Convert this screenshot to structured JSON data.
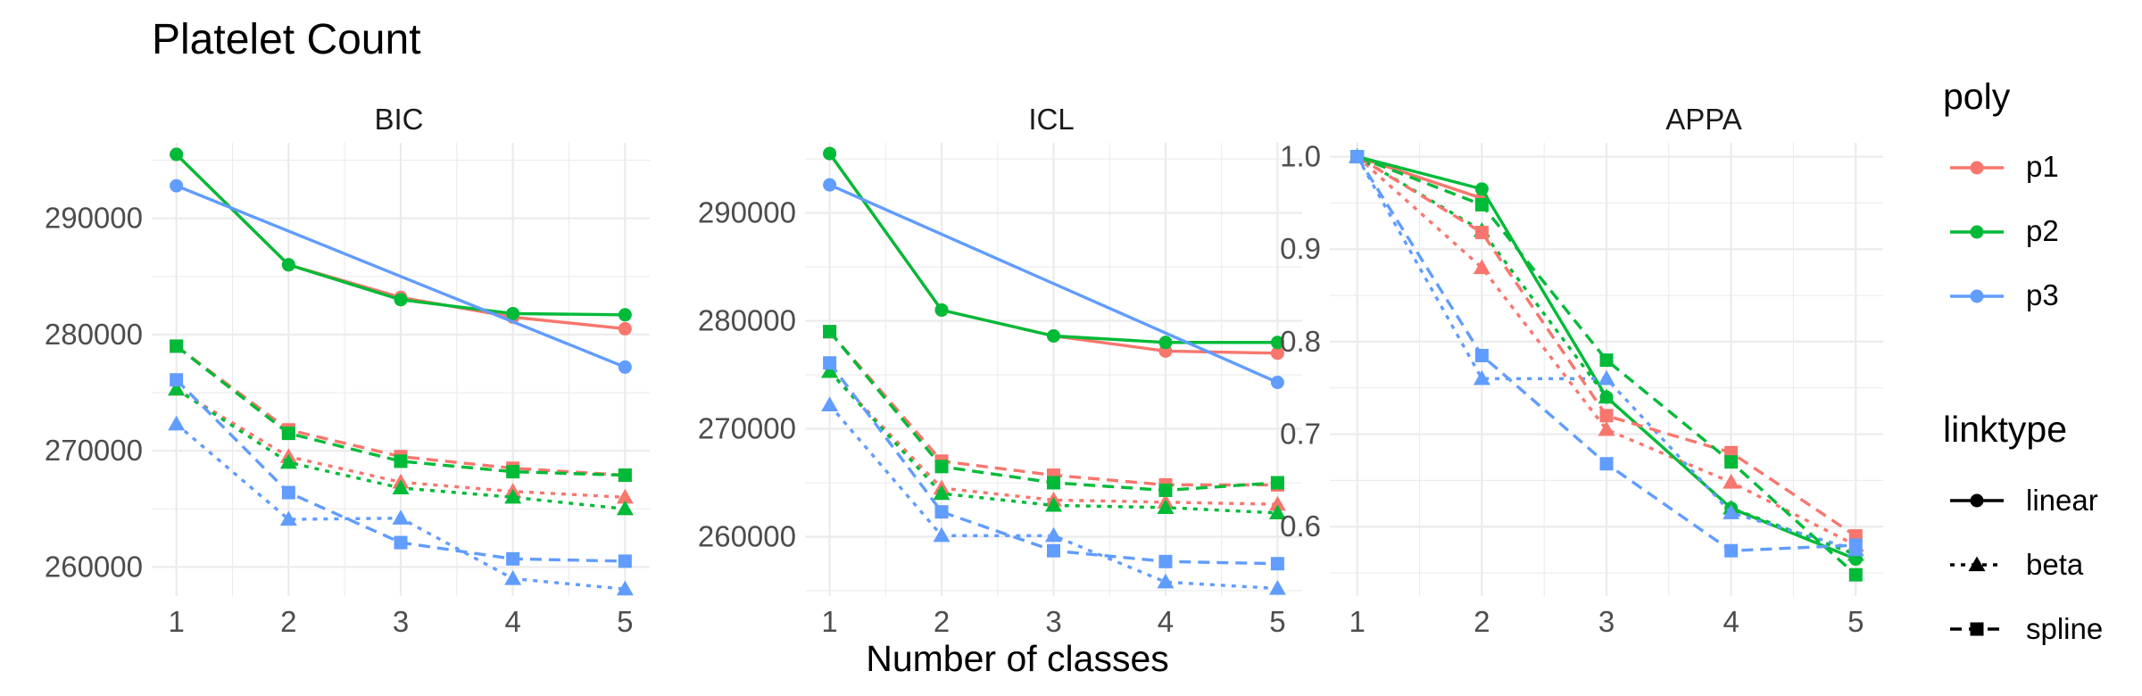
{
  "chart_data": {
    "type": "line",
    "title": "Platelet Count",
    "xlabel": "Number of classes",
    "ylabel": "",
    "x": [
      1,
      2,
      3,
      4,
      5
    ],
    "grid": true,
    "legend_placement": "right",
    "colors": {
      "p1": "#F8766D",
      "p2": "#00BA38",
      "p3": "#619CFF"
    },
    "legends": {
      "poly": {
        "title": "poly",
        "entries": [
          "p1",
          "p2",
          "p3"
        ]
      },
      "linktype": {
        "title": "linktype",
        "entries": [
          {
            "label": "linear",
            "dash": "solid",
            "shape": "circle"
          },
          {
            "label": "beta",
            "dash": "dotted",
            "shape": "triangle"
          },
          {
            "label": "spline",
            "dash": "dashed",
            "shape": "square"
          }
        ]
      }
    },
    "panels": [
      {
        "name": "BIC",
        "ylim": [
          257500,
          296500
        ],
        "yticks": [
          260000,
          270000,
          280000,
          290000
        ],
        "ytick_labels": [
          "260000",
          "270000",
          "280000",
          "290000"
        ],
        "series": [
          {
            "poly": "p1",
            "link": "linear",
            "values": [
              295500,
              286000,
              283200,
              281500,
              280500
            ]
          },
          {
            "poly": "p2",
            "link": "linear",
            "values": [
              295500,
              286000,
              283000,
              281800,
              281700
            ]
          },
          {
            "poly": "p3",
            "link": "linear",
            "values": [
              292800,
              null,
              null,
              null,
              277200
            ]
          },
          {
            "poly": "p1",
            "link": "beta",
            "values": [
              275300,
              269500,
              267300,
              266500,
              266000
            ]
          },
          {
            "poly": "p2",
            "link": "beta",
            "values": [
              275300,
              269000,
              266800,
              266000,
              265000
            ]
          },
          {
            "poly": "p3",
            "link": "beta",
            "values": [
              272300,
              264100,
              264200,
              259000,
              258100
            ]
          },
          {
            "poly": "p1",
            "link": "spline",
            "values": [
              279000,
              271800,
              269500,
              268500,
              267900
            ]
          },
          {
            "poly": "p2",
            "link": "spline",
            "values": [
              279000,
              271500,
              269100,
              268200,
              267900
            ]
          },
          {
            "poly": "p3",
            "link": "spline",
            "values": [
              276100,
              266400,
              262100,
              260700,
              260500
            ]
          }
        ]
      },
      {
        "name": "ICL",
        "ylim": [
          254500,
          296500
        ],
        "yticks": [
          260000,
          270000,
          280000,
          290000
        ],
        "ytick_labels": [
          "260000",
          "270000",
          "280000",
          "290000"
        ],
        "series": [
          {
            "poly": "p1",
            "link": "linear",
            "values": [
              295500,
              281000,
              278600,
              277200,
              277000
            ]
          },
          {
            "poly": "p2",
            "link": "linear",
            "values": [
              295500,
              281000,
              278600,
              278000,
              278000
            ]
          },
          {
            "poly": "p3",
            "link": "linear",
            "values": [
              292600,
              null,
              null,
              null,
              274300
            ]
          },
          {
            "poly": "p1",
            "link": "beta",
            "values": [
              275300,
              264500,
              263400,
              263200,
              263000
            ]
          },
          {
            "poly": "p2",
            "link": "beta",
            "values": [
              275300,
              264000,
              262900,
              262700,
              262200
            ]
          },
          {
            "poly": "p3",
            "link": "beta",
            "values": [
              272200,
              260100,
              260100,
              255800,
              255200
            ]
          },
          {
            "poly": "p1",
            "link": "spline",
            "values": [
              279000,
              267000,
              265700,
              264800,
              264800
            ]
          },
          {
            "poly": "p2",
            "link": "spline",
            "values": [
              279000,
              266500,
              265000,
              264300,
              265000
            ]
          },
          {
            "poly": "p3",
            "link": "spline",
            "values": [
              276100,
              262300,
              258700,
              257700,
              257500
            ]
          }
        ]
      },
      {
        "name": "APPA",
        "ylim": [
          0.525,
          1.015
        ],
        "yticks": [
          0.6,
          0.7,
          0.8,
          0.9,
          1.0
        ],
        "ytick_labels": [
          "0.6",
          "0.7",
          "0.8",
          "0.9",
          "1.0"
        ],
        "series": [
          {
            "poly": "p1",
            "link": "linear",
            "values": [
              1.0,
              0.955,
              null,
              null,
              null
            ]
          },
          {
            "poly": "p2",
            "link": "linear",
            "values": [
              1.0,
              0.965,
              0.74,
              0.62,
              0.565
            ]
          },
          {
            "poly": "p1",
            "link": "beta",
            "values": [
              1.0,
              0.88,
              0.705,
              0.648,
              0.58
            ]
          },
          {
            "poly": "p2",
            "link": "beta",
            "values": [
              1.0,
              0.92,
              0.74,
              0.62,
              0.57
            ]
          },
          {
            "poly": "p3",
            "link": "beta",
            "values": [
              1.0,
              0.76,
              0.76,
              0.615,
              0.575
            ]
          },
          {
            "poly": "p1",
            "link": "spline",
            "values": [
              1.0,
              0.918,
              0.72,
              0.68,
              0.59
            ]
          },
          {
            "poly": "p2",
            "link": "spline",
            "values": [
              1.0,
              0.948,
              0.78,
              0.67,
              0.548
            ]
          },
          {
            "poly": "p3",
            "link": "spline",
            "values": [
              1.0,
              0.785,
              0.668,
              0.574,
              0.58
            ]
          }
        ]
      }
    ]
  }
}
